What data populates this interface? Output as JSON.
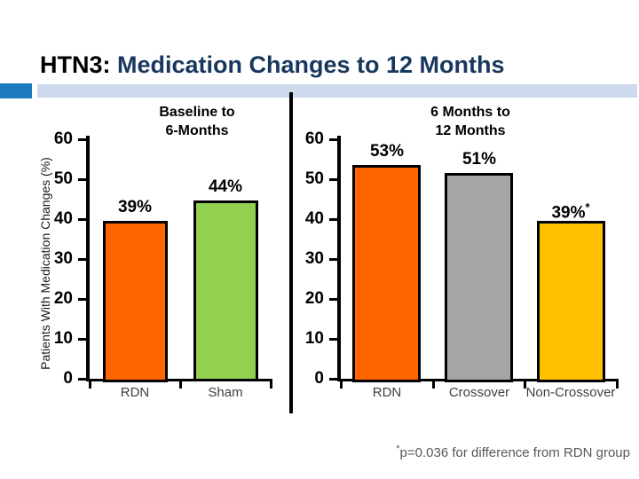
{
  "slide": {
    "title_prefix": "HTN3:",
    "title_rest": " Medication Changes to 12 Months",
    "title_rest_color": "#17375E",
    "accent_square_color": "#1B79C0",
    "accent_band_color": "#CDD9EC",
    "footnote_sup": "*",
    "footnote_text": "p=0.036 for difference from RDN group"
  },
  "chart_data": {
    "type": "bar",
    "ylabel": "Patients With Medication Changes (%)",
    "ylim": [
      0,
      60
    ],
    "yticks": [
      0,
      10,
      20,
      30,
      40,
      50,
      60
    ],
    "grid": "off",
    "legend": "none",
    "panels": [
      {
        "title_lines": [
          "Baseline to",
          "6-Months"
        ],
        "categories": [
          "RDN",
          "Sham"
        ],
        "values": [
          39,
          44
        ],
        "value_labels": [
          "39%",
          "44%"
        ],
        "value_label_sups": [
          "",
          ""
        ],
        "colors": [
          "#FF6600",
          "#92D050"
        ]
      },
      {
        "title_lines": [
          "6 Months to",
          "12 Months"
        ],
        "categories": [
          "RDN",
          "Crossover",
          "Non-Crossover"
        ],
        "values": [
          53,
          51,
          39
        ],
        "value_labels": [
          "53%",
          "51%",
          "39%"
        ],
        "value_label_sups": [
          "",
          "",
          "*"
        ],
        "colors": [
          "#FF6600",
          "#A6A6A6",
          "#FFC000"
        ]
      }
    ]
  }
}
